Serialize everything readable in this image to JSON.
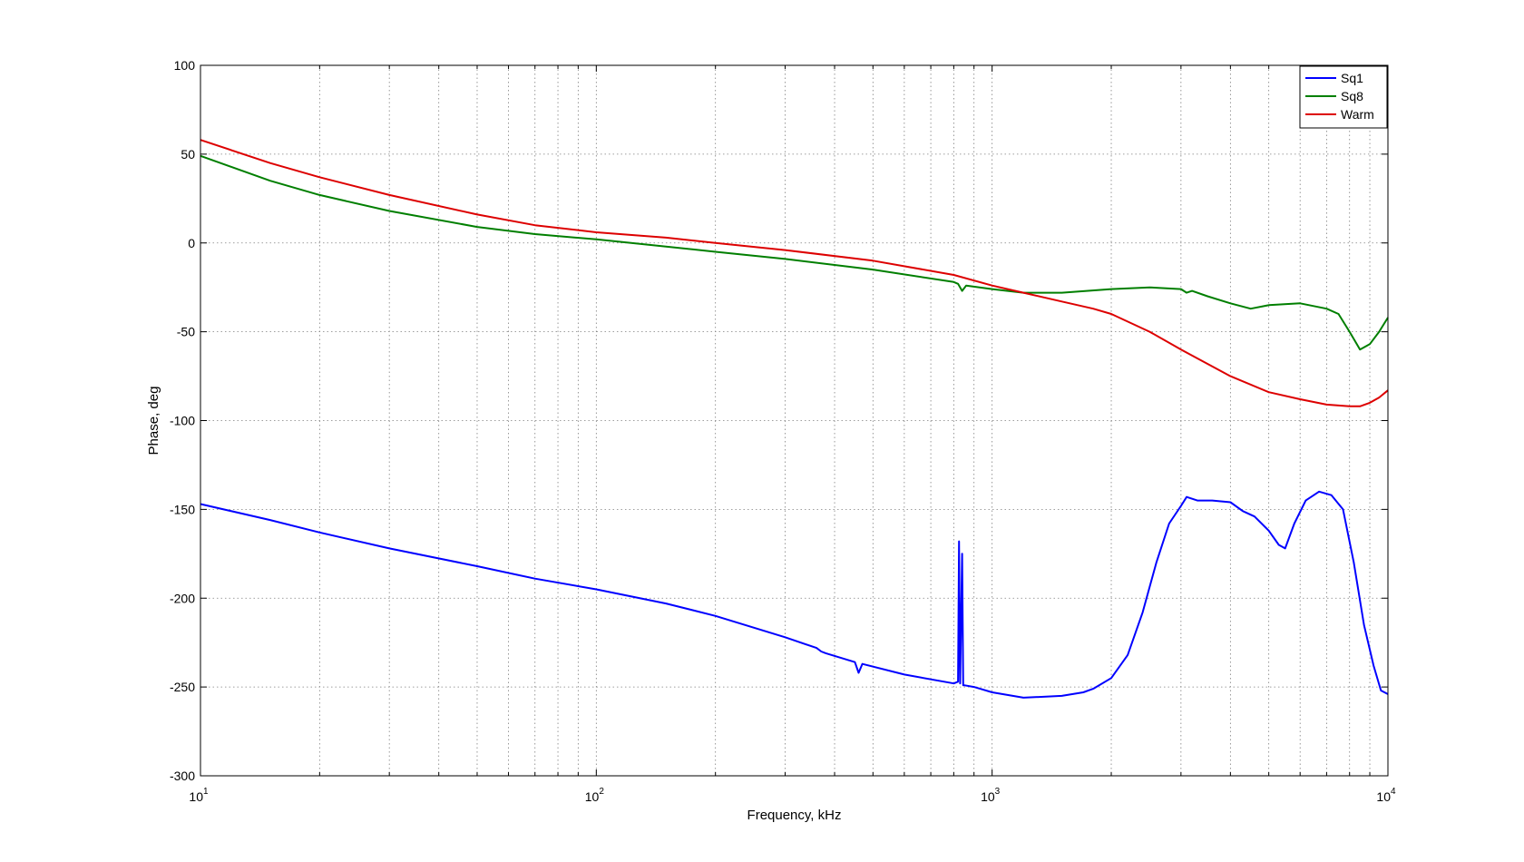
{
  "chart_data": {
    "type": "line",
    "title": "",
    "xlabel": "Frequency, kHz",
    "ylabel": "Phase, deg",
    "xscale": "log",
    "xlim": [
      10,
      10000
    ],
    "ylim": [
      -300,
      100
    ],
    "yticks": [
      100,
      50,
      0,
      -50,
      -100,
      -150,
      -200,
      -250,
      -300
    ],
    "xticks": [
      {
        "value": 10,
        "base": "10",
        "exp": "1"
      },
      {
        "value": 100,
        "base": "10",
        "exp": "2"
      },
      {
        "value": 1000,
        "base": "10",
        "exp": "3"
      },
      {
        "value": 10000,
        "base": "10",
        "exp": "4"
      }
    ],
    "grid": true,
    "legend_position": "top-right",
    "series": [
      {
        "name": "Sq1",
        "color": "#0000ff",
        "x": [
          10,
          15,
          20,
          30,
          50,
          70,
          100,
          150,
          200,
          300,
          360,
          370,
          380,
          450,
          460,
          470,
          600,
          800,
          820,
          825,
          830,
          840,
          845,
          850,
          900,
          1000,
          1200,
          1500,
          1700,
          1800,
          2000,
          2200,
          2400,
          2600,
          2800,
          3000,
          3100,
          3300,
          3600,
          4000,
          4300,
          4600,
          5000,
          5300,
          5500,
          5800,
          6200,
          6700,
          7200,
          7700,
          8200,
          8700,
          9200,
          9600,
          10000
        ],
        "y": [
          -147,
          -156,
          -163,
          -172,
          -182,
          -189,
          -195,
          -203,
          -210,
          -222,
          -228,
          -230,
          -231,
          -236,
          -242,
          -237,
          -243,
          -248,
          -247,
          -168,
          -248,
          -175,
          -249,
          -249,
          -250,
          -253,
          -256,
          -255,
          -253,
          -251,
          -245,
          -232,
          -208,
          -180,
          -158,
          -148,
          -143,
          -145,
          -145,
          -146,
          -151,
          -154,
          -162,
          -170,
          -172,
          -158,
          -145,
          -140,
          -142,
          -150,
          -180,
          -215,
          -238,
          -252,
          -254
        ]
      },
      {
        "name": "Sq8",
        "color": "#007f00",
        "x": [
          10,
          15,
          20,
          30,
          50,
          70,
          100,
          150,
          200,
          300,
          500,
          800,
          820,
          840,
          860,
          1000,
          1200,
          1500,
          2000,
          2500,
          3000,
          3100,
          3200,
          3500,
          4000,
          4500,
          5000,
          6000,
          7000,
          7500,
          8000,
          8500,
          9000,
          9500,
          10000
        ],
        "y": [
          49,
          35,
          27,
          18,
          9,
          5,
          2,
          -2,
          -5,
          -9,
          -15,
          -22,
          -23,
          -27,
          -24,
          -26,
          -28,
          -28,
          -26,
          -25,
          -26,
          -28,
          -27,
          -30,
          -34,
          -37,
          -35,
          -34,
          -37,
          -40,
          -50,
          -60,
          -57,
          -50,
          -42
        ]
      },
      {
        "name": "Warm",
        "color": "#dd0000",
        "x": [
          10,
          15,
          20,
          30,
          50,
          70,
          100,
          150,
          200,
          300,
          500,
          800,
          1000,
          1200,
          1500,
          1800,
          2000,
          2500,
          3000,
          4000,
          5000,
          6000,
          7000,
          8000,
          8500,
          9000,
          9500,
          10000
        ],
        "y": [
          58,
          45,
          37,
          27,
          16,
          10,
          6,
          3,
          0,
          -4,
          -10,
          -18,
          -24,
          -28,
          -33,
          -37,
          -40,
          -50,
          -60,
          -75,
          -84,
          -88,
          -91,
          -92,
          -92,
          -90,
          -87,
          -83
        ]
      }
    ]
  }
}
